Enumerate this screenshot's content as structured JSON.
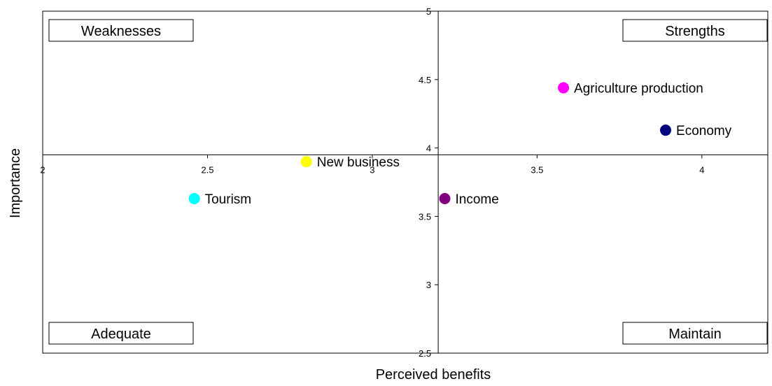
{
  "chart_data": {
    "type": "scatter",
    "xlabel": "Perceived benefits",
    "ylabel": "Importance",
    "xlim": [
      2,
      4.2
    ],
    "ylim": [
      2.5,
      5
    ],
    "x_ticks": [
      {
        "value": 2,
        "label": "2"
      },
      {
        "value": 2.5,
        "label": "2.5"
      },
      {
        "value": 3,
        "label": "3"
      },
      {
        "value": 3.5,
        "label": "3.5"
      },
      {
        "value": 4,
        "label": "4"
      }
    ],
    "y_ticks": [
      {
        "value": 2.5,
        "label": "2.5"
      },
      {
        "value": 3,
        "label": "3"
      },
      {
        "value": 3.5,
        "label": "3.5"
      },
      {
        "value": 4,
        "label": "4"
      },
      {
        "value": 4.5,
        "label": "4.5"
      },
      {
        "value": 5,
        "label": "5"
      }
    ],
    "x_axis_crosses_y_at": 3.95,
    "y_axis_crosses_x_at": 3.2,
    "grid": false,
    "legend": "none",
    "points": [
      {
        "label": "Agriculture production",
        "x": 3.58,
        "y": 4.44,
        "color": "#ff00ff"
      },
      {
        "label": "Economy",
        "x": 3.89,
        "y": 4.13,
        "color": "#000080"
      },
      {
        "label": "New business",
        "x": 2.8,
        "y": 3.9,
        "color": "#ffff00"
      },
      {
        "label": "Tourism",
        "x": 2.46,
        "y": 3.63,
        "color": "#00ffff"
      },
      {
        "label": "Income",
        "x": 3.22,
        "y": 3.63,
        "color": "#800080"
      }
    ],
    "quadrant_labels": {
      "top_left": "Weaknesses",
      "top_right": "Strengths",
      "bottom_left": "Adequate",
      "bottom_right": "Maintain"
    }
  }
}
